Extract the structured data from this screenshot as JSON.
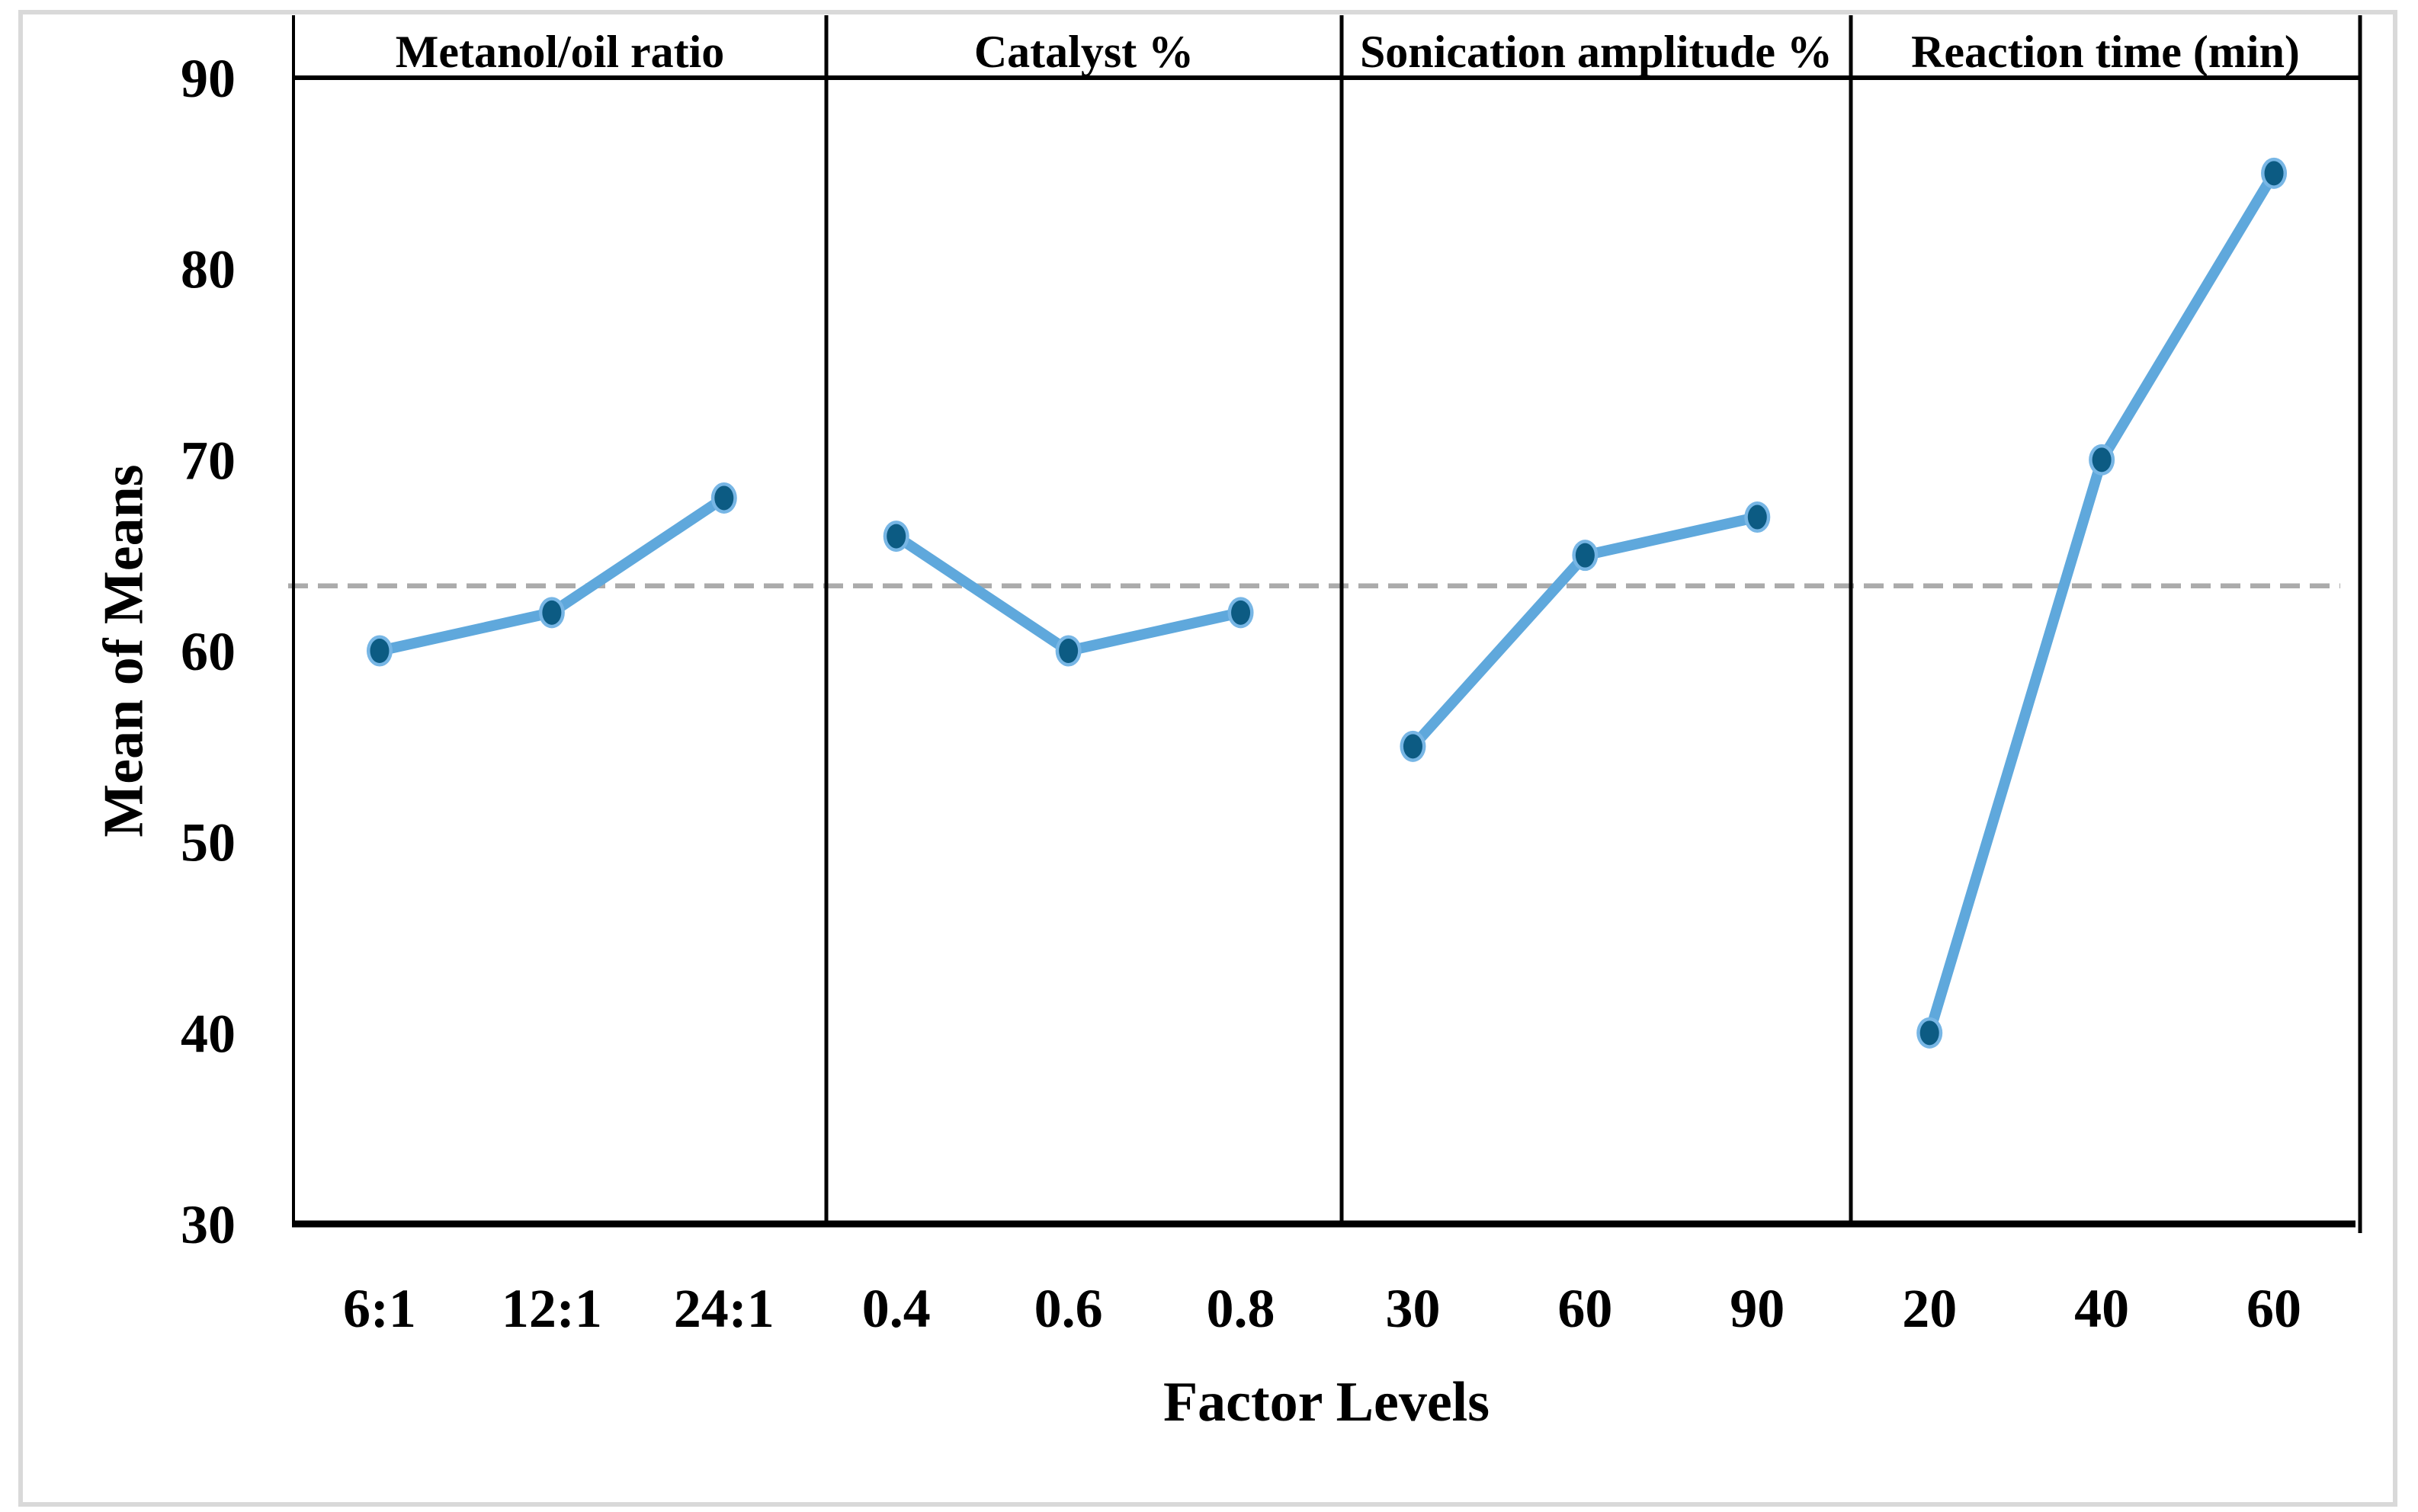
{
  "figure": {
    "kind": "main-effects-plot",
    "background": "#ffffff"
  },
  "chart_data": {
    "type": "line",
    "title": "",
    "ylabel": "Mean of Means",
    "xlabel": "Factor Levels",
    "ylim": [
      30,
      90
    ],
    "yticks": [
      90,
      80,
      70,
      60,
      50,
      40,
      30
    ],
    "grid": false,
    "legend": null,
    "reference_line": {
      "value": 63.4,
      "style": "dashed",
      "color": "#ABABAB"
    },
    "panels": [
      {
        "title": "Metanol/oil ratio",
        "categories": [
          "6:1",
          "12:1",
          "24:1"
        ],
        "values": [
          60,
          62,
          68
        ]
      },
      {
        "title": "Catalyst %",
        "categories": [
          "0.4",
          "0.6",
          "0.8"
        ],
        "values": [
          66,
          60,
          62
        ]
      },
      {
        "title": "Sonication amplitude %",
        "categories": [
          "30",
          "60",
          "90"
        ],
        "values": [
          55,
          65,
          67
        ]
      },
      {
        "title": "Reaction time (min)",
        "categories": [
          "20",
          "40",
          "60"
        ],
        "values": [
          40,
          70,
          85
        ]
      }
    ],
    "colors": {
      "series_line": "#5FA8DC",
      "marker_ring": "#77B6E5",
      "marker_core": "#0C5B83",
      "reference": "#ABABAB",
      "frame": "#000000",
      "outer_border": "#D9D9D9",
      "text": "#000000"
    }
  }
}
